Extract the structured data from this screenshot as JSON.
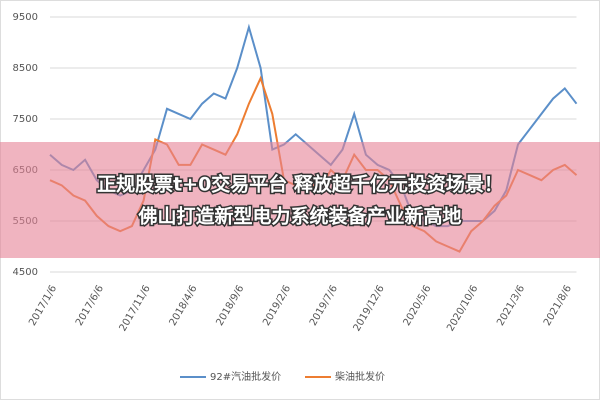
{
  "chart_data": {
    "type": "line",
    "categories": [
      "2017/1/6",
      null,
      null,
      null,
      "2017/6/6",
      null,
      null,
      null,
      "2017/11/6",
      null,
      null,
      null,
      "2018/4/6",
      null,
      null,
      null,
      "2018/9/6",
      null,
      null,
      null,
      "2019/2/6",
      null,
      null,
      null,
      "2019/7/6",
      null,
      null,
      null,
      "2019/12/6",
      null,
      null,
      null,
      "2020/5/6",
      null,
      null,
      null,
      "2020/10/6",
      null,
      null,
      null,
      "2021/3/6",
      null,
      null,
      null,
      "2021/8/6",
      null
    ],
    "series": [
      {
        "name": "92#汽油批发价",
        "color": "#5b8fc9",
        "values": [
          6800,
          6600,
          6500,
          6700,
          6300,
          6100,
          6000,
          6100,
          6500,
          6900,
          7700,
          7600,
          7500,
          7800,
          8000,
          7900,
          8500,
          9300,
          8500,
          6900,
          7000,
          7200,
          7000,
          6800,
          6600,
          6900,
          7600,
          6800,
          6600,
          6500,
          6200,
          5600,
          5500,
          5400,
          5400,
          5500,
          5500,
          5500,
          5700,
          6100,
          7000,
          7300,
          7600,
          7900,
          8100,
          7800
        ]
      },
      {
        "name": "柴油批发价",
        "color": "#ed7d31",
        "values": [
          6300,
          6200,
          6000,
          5900,
          5600,
          5400,
          5300,
          5400,
          5900,
          7100,
          7000,
          6600,
          6600,
          7000,
          6900,
          6800,
          7200,
          7800,
          8300,
          7600,
          6300,
          6200,
          6300,
          6100,
          6500,
          6300,
          6800,
          6500,
          6500,
          6300,
          5800,
          5400,
          5300,
          5100,
          5000,
          4900,
          5300,
          5500,
          5800,
          6000,
          6500,
          6400,
          6300,
          6500,
          6600,
          6400
        ]
      }
    ],
    "ylim": [
      4500,
      9500
    ],
    "yticks": [
      4500,
      5500,
      6500,
      7500,
      8500,
      9500
    ],
    "grid": true,
    "legend": "bottom",
    "annotations": [
      "正规股票t+0交易平台 释放超千亿元投资场景！",
      "佛山打造新型电力系统装备产业新高地"
    ]
  }
}
